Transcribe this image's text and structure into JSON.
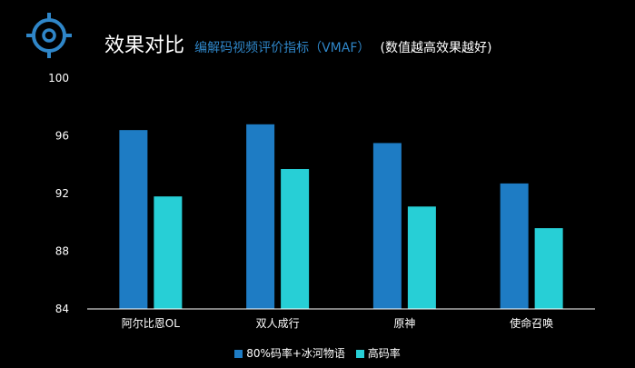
{
  "header": {
    "title_main": "效果对比",
    "title_sub": "编解码视频评价指标（VMAF）",
    "title_note": "(数值越高效果越好)",
    "icon": "crosshair-target-icon"
  },
  "colors": {
    "series_1": "#1e7cc4",
    "series_2": "#27cfd6",
    "accent": "#2f86c8",
    "axis": "#ffffff"
  },
  "chart_data": {
    "type": "bar",
    "categories": [
      "阿尔比恩OL",
      "双人成行",
      "原神",
      "使命召唤"
    ],
    "series": [
      {
        "name": "80%码率+冰河物语",
        "values": [
          96.4,
          96.8,
          95.5,
          92.7
        ]
      },
      {
        "name": "高码率",
        "values": [
          91.8,
          93.7,
          91.1,
          89.6
        ]
      }
    ],
    "yticks": [
      84,
      88,
      92,
      96,
      100
    ],
    "ylim": [
      84,
      100
    ],
    "grid": false,
    "legend": "bottom"
  }
}
